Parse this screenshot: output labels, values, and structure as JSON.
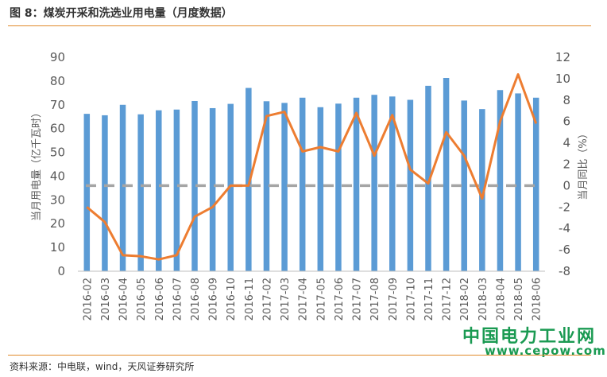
{
  "header": {
    "title": "图 8：煤炭开采和洗选业用电量（月度数据）"
  },
  "footer": {
    "source": "资料来源：中电联，wind，天风证券研究所"
  },
  "watermark": {
    "name": "中国电力工业网",
    "url": "www.cepow.com"
  },
  "chart_data": {
    "type": "bar",
    "categories": [
      "2016-02",
      "2016-03",
      "2016-04",
      "2016-05",
      "2016-06",
      "2016-07",
      "2016-08",
      "2016-09",
      "2016-10",
      "2016-11",
      "2017-02",
      "2017-03",
      "2017-04",
      "2017-05",
      "2017-06",
      "2017-07",
      "2017-08",
      "2017-09",
      "2017-10",
      "2017-11",
      "2017-12",
      "2018-02",
      "2018-03",
      "2018-04",
      "2018-05",
      "2018-06"
    ],
    "ylabel": "当月用电量（亿千瓦时）",
    "y2label": "当月同比（%）",
    "ylim": [
      0,
      90
    ],
    "y2lim": [
      -8,
      12
    ],
    "yticks": [
      0,
      10,
      20,
      30,
      40,
      50,
      60,
      70,
      80,
      90
    ],
    "y2ticks": [
      -8,
      -6,
      -4,
      -2,
      0,
      2,
      4,
      6,
      8,
      10,
      12
    ],
    "grid": false,
    "series": [
      {
        "values": [
          66.2,
          65.6,
          70.0,
          66.0,
          67.7,
          68.0,
          71.6,
          68.6,
          70.4,
          77.1,
          71.5,
          70.8,
          73.0,
          69.0,
          70.5,
          73.0,
          74.2,
          73.5,
          72.1,
          78.0,
          81.3,
          71.8,
          68.2,
          76.2,
          74.8,
          73.0
        ],
        "color": "#5b9bd5",
        "axis": "left",
        "kind": "bar"
      },
      {
        "values": [
          -2.0,
          -3.4,
          -6.5,
          -6.6,
          -6.9,
          -6.5,
          -2.9,
          -2.0,
          0.0,
          0.0,
          6.5,
          6.9,
          3.2,
          3.6,
          3.2,
          6.8,
          2.8,
          6.6,
          1.5,
          0.2,
          5.0,
          2.8,
          -1.2,
          6.0,
          10.4,
          5.8
        ],
        "color": "#ed7d31",
        "axis": "right",
        "kind": "line"
      },
      {
        "values": [
          0,
          0,
          0,
          0,
          0,
          0,
          0,
          0,
          0,
          0,
          0,
          0,
          0,
          0,
          0,
          0,
          0,
          0,
          0,
          0,
          0,
          0,
          0,
          0,
          0,
          0
        ],
        "color": "#a5a5a5",
        "axis": "right",
        "kind": "dashed-line"
      }
    ]
  }
}
